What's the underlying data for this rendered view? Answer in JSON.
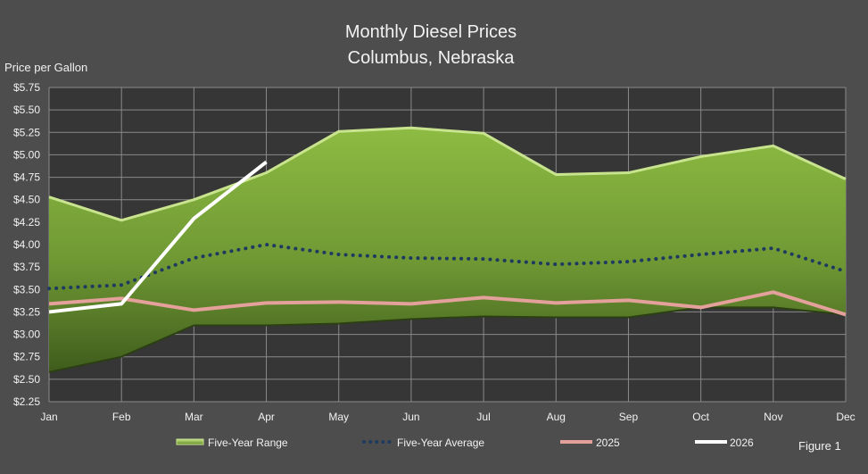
{
  "chart_data": {
    "type": "area",
    "title": "Monthly Diesel Prices",
    "subtitle": "Columbus, Nebraska",
    "ylabel": "Price per Gallon",
    "xlabel": "",
    "categories": [
      "Jan",
      "Feb",
      "Mar",
      "Apr",
      "May",
      "Jun",
      "Jul",
      "Aug",
      "Sep",
      "Oct",
      "Nov",
      "Dec"
    ],
    "ylim": [
      2.25,
      5.75
    ],
    "y_ticks": [
      2.25,
      2.5,
      2.75,
      3.0,
      3.25,
      3.5,
      3.75,
      4.0,
      4.25,
      4.5,
      4.75,
      5.0,
      5.25,
      5.5,
      5.75
    ],
    "y_tick_labels": [
      "$2.25",
      "$2.50",
      "$2.75",
      "$3.00",
      "$3.25",
      "$3.50",
      "$3.75",
      "$4.00",
      "$4.25",
      "$4.50",
      "$4.75",
      "$5.00",
      "$5.25",
      "$5.50",
      "$5.75"
    ],
    "grid": true,
    "legend_position": "bottom",
    "range": {
      "name": "Five-Year Range",
      "high": [
        4.53,
        4.27,
        4.5,
        4.8,
        5.26,
        5.3,
        5.24,
        4.78,
        4.8,
        4.98,
        5.1,
        4.73
      ],
      "low": [
        2.58,
        2.75,
        3.1,
        3.1,
        3.12,
        3.17,
        3.2,
        3.19,
        3.19,
        3.3,
        3.3,
        3.22
      ],
      "color": "#8cb43c"
    },
    "series": [
      {
        "name": "Five-Year Average",
        "style": "dotted",
        "color": "#1f3a5f",
        "values": [
          3.51,
          3.55,
          3.85,
          4.0,
          3.89,
          3.85,
          3.84,
          3.78,
          3.81,
          3.89,
          3.96,
          3.7
        ]
      },
      {
        "name": "2025",
        "style": "solid",
        "color": "#e4a09a",
        "values": [
          3.34,
          3.4,
          3.27,
          3.35,
          3.36,
          3.34,
          3.41,
          3.35,
          3.38,
          3.3,
          3.47,
          3.22
        ]
      },
      {
        "name": "2026",
        "style": "solid",
        "color": "#ffffff",
        "values": [
          3.25,
          3.34,
          4.29,
          4.92,
          null,
          null,
          null,
          null,
          null,
          null,
          null,
          null
        ]
      }
    ]
  },
  "figure_label": "Figure 1"
}
